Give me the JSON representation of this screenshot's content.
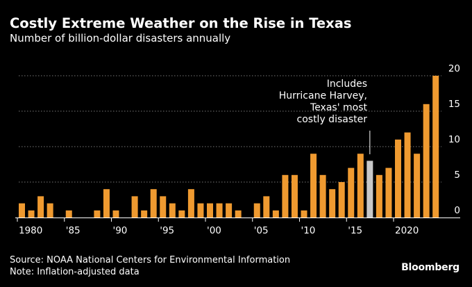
{
  "chart_data": {
    "type": "bar",
    "title": "Costly Extreme Weather on the Rise in Texas",
    "subtitle": "Number of billion-dollar disasters annually",
    "categories": [
      1980,
      1981,
      1982,
      1983,
      1984,
      1985,
      1986,
      1987,
      1988,
      1989,
      1990,
      1991,
      1992,
      1993,
      1994,
      1995,
      1996,
      1997,
      1998,
      1999,
      2000,
      2001,
      2002,
      2003,
      2004,
      2005,
      2006,
      2007,
      2008,
      2009,
      2010,
      2011,
      2012,
      2013,
      2014,
      2015,
      2016,
      2017,
      2018,
      2019,
      2020,
      2021,
      2022,
      2023,
      2024
    ],
    "values": [
      2,
      1,
      3,
      2,
      0,
      1,
      0,
      0,
      1,
      4,
      1,
      0,
      3,
      1,
      4,
      3,
      2,
      1,
      4,
      2,
      2,
      2,
      2,
      1,
      0,
      2,
      3,
      1,
      6,
      6,
      1,
      9,
      6,
      4,
      5,
      7,
      9,
      8,
      6,
      7,
      11,
      12,
      9,
      16,
      20
    ],
    "highlight_index": 37,
    "xtick_labels": [
      "1980",
      "'85",
      "'90",
      "'95",
      "'00",
      "'05",
      "'10",
      "'15",
      "2020"
    ],
    "xtick_years": [
      1980,
      1985,
      1990,
      1995,
      2000,
      2005,
      2010,
      2015,
      2020
    ],
    "ytick_labels": [
      "0",
      "5",
      "10",
      "15",
      "20"
    ],
    "ytick_values": [
      0,
      5,
      10,
      15,
      20
    ],
    "ylim": [
      0,
      20
    ],
    "grid": true,
    "annotation_lines": [
      "Includes",
      "Hurricane Harvey,",
      "Texas' most",
      "costly disaster"
    ],
    "colors": {
      "bar": "#EF9A30",
      "highlight": "#C8C8C8",
      "grid": "#777777",
      "axis": "#ffffff",
      "background": "#000000"
    }
  },
  "footer": {
    "source": "Source: NOAA National Centers for Environmental Information",
    "note": "Note: Inflation-adjusted data"
  },
  "brand": "Bloomberg"
}
